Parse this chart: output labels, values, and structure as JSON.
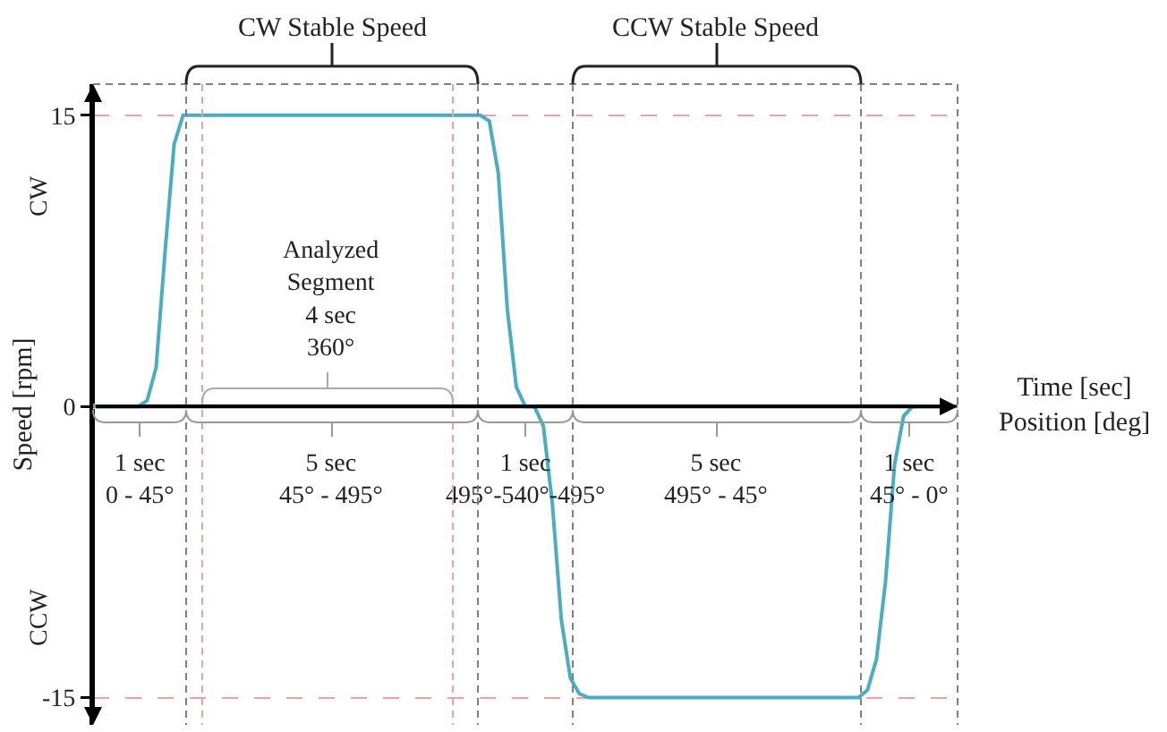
{
  "chart_data": {
    "type": "line",
    "xlabel": "Time [sec]\nPosition [deg]",
    "ylabel": "Speed [rpm]",
    "categories": [
      null,
      null,
      null,
      null,
      null,
      null,
      null,
      null,
      null,
      null,
      null,
      null,
      null,
      null,
      null,
      null,
      null,
      null,
      null,
      null,
      null,
      null,
      null,
      null,
      null,
      null,
      null,
      null,
      null,
      null,
      null,
      null,
      null,
      null,
      null,
      null,
      null,
      null,
      null,
      null,
      null,
      null,
      null,
      null,
      null,
      null,
      null,
      null,
      null,
      null,
      null,
      null,
      null,
      null,
      null,
      null,
      null,
      null,
      null,
      null,
      null,
      null,
      null,
      null,
      null,
      null,
      null,
      null,
      null,
      null,
      null,
      null,
      null,
      null,
      null,
      null,
      null,
      null,
      null,
      null,
      null,
      null,
      null,
      null,
      null,
      null,
      null,
      null,
      null,
      null,
      null,
      null,
      null,
      null,
      null,
      null,
      null
    ],
    "series": [
      {
        "color": "#4bacc6",
        "values": [
          0,
          0,
          0,
          0,
          0,
          0,
          0.3,
          2,
          8,
          13.5,
          15,
          15,
          15,
          15,
          15,
          15,
          15,
          15,
          15,
          15,
          15,
          15,
          15,
          15,
          15,
          15,
          15,
          15,
          15,
          15,
          15,
          15,
          15,
          15,
          15,
          15,
          15,
          15,
          15,
          15,
          15,
          15,
          15,
          15,
          14.7,
          12,
          5,
          1,
          0,
          0,
          -1,
          -5,
          -11,
          -14,
          -14.8,
          -15,
          -15,
          -15,
          -15,
          -15,
          -15,
          -15,
          -15,
          -15,
          -15,
          -15,
          -15,
          -15,
          -15,
          -15,
          -15,
          -15,
          -15,
          -15,
          -15,
          -15,
          -15,
          -15,
          -15,
          -15,
          -15,
          -15,
          -15,
          -15,
          -15,
          -15,
          -14.6,
          -13,
          -9,
          -3,
          -0.5,
          0,
          0,
          0,
          0,
          0,
          0
        ]
      }
    ],
    "ylim": [
      -16.4,
      16.6
    ],
    "yticks": [
      15,
      0,
      -15
    ],
    "tick_labels": "y",
    "grid": true,
    "annotations": [
      "CW Stable Speed",
      "CCW Stable Speed",
      "Analyzed\nSegment\n4 sec\n360°",
      "1 sec\n0 - 45°",
      "5 sec\n45° - 495°",
      "1 sec\n495°-540°-495°",
      "5 sec\n495° - 45°",
      "1 sec\n45° - 0°",
      "CW",
      "CCW"
    ]
  }
}
